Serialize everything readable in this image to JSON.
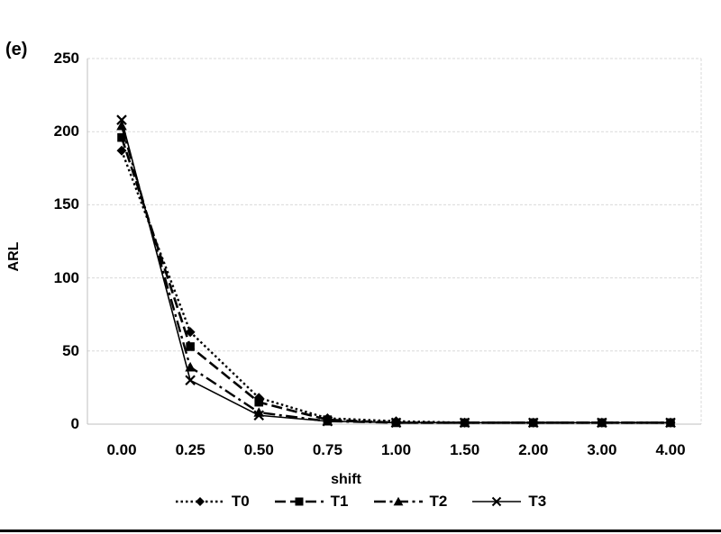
{
  "panel_label": "(e)",
  "colors": {
    "series": "#000000",
    "grid": "#d9d9d9",
    "axis": "#bfbfbf",
    "background": "#ffffff",
    "bottom_rule": "#000000"
  },
  "chart_data": {
    "type": "line",
    "title": "",
    "xlabel": "shift",
    "ylabel": "ARL",
    "categories": [
      "0.00",
      "0.25",
      "0.50",
      "0.75",
      "1.00",
      "1.50",
      "2.00",
      "3.00",
      "4.00"
    ],
    "yticks": [
      0,
      50,
      100,
      150,
      200,
      250
    ],
    "ylim": [
      0,
      250
    ],
    "grid": "horizontal-dashed",
    "legend_position": "bottom",
    "series": [
      {
        "name": "T0",
        "marker": "diamond",
        "line_style": "dotted",
        "values": [
          187,
          63,
          18,
          4,
          2,
          1,
          1,
          1,
          1
        ]
      },
      {
        "name": "T1",
        "marker": "square",
        "line_style": "dashed",
        "values": [
          196,
          53,
          15,
          3,
          1,
          1,
          1,
          1,
          1
        ]
      },
      {
        "name": "T2",
        "marker": "triangle",
        "line_style": "dash-dot",
        "values": [
          204,
          39,
          8,
          2,
          1,
          1,
          1,
          1,
          1
        ]
      },
      {
        "name": "T3",
        "marker": "x",
        "line_style": "solid",
        "values": [
          208,
          30,
          6,
          2,
          1,
          1,
          1,
          1,
          1
        ]
      }
    ]
  }
}
